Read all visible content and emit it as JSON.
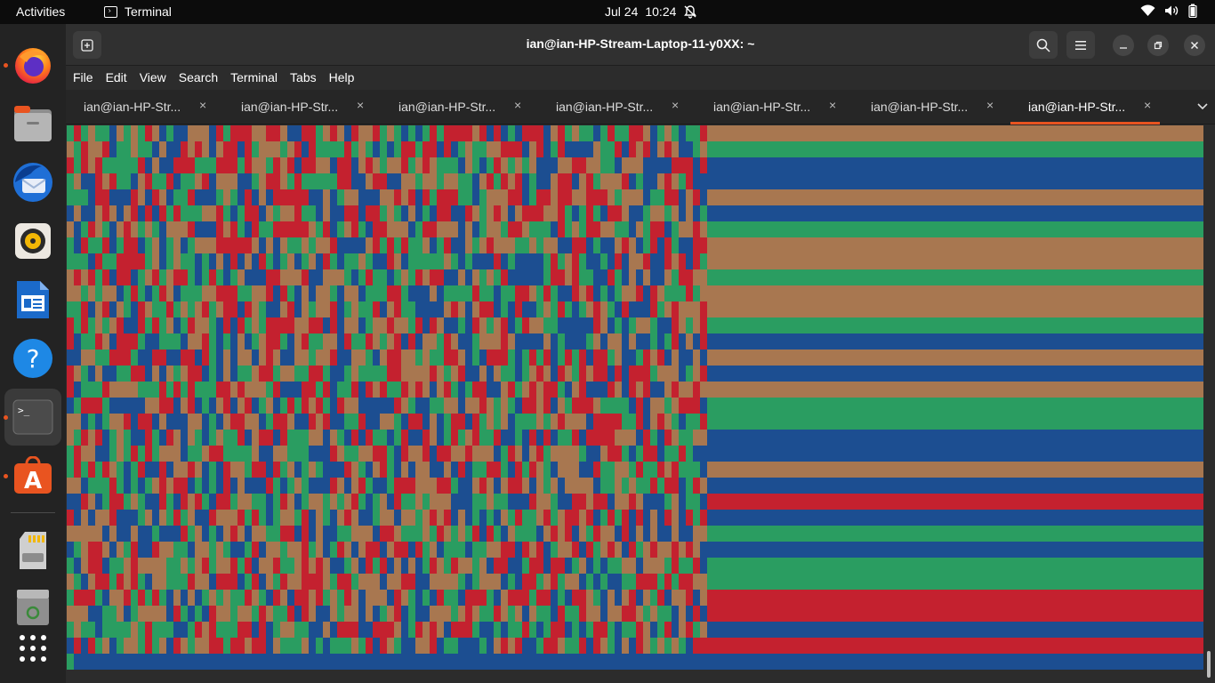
{
  "topbar": {
    "activities": "Activities",
    "app_name": "Terminal",
    "date": "Jul 24",
    "time": "10:24"
  },
  "dock": {
    "items": [
      {
        "name": "Firefox",
        "icon": "firefox-icon",
        "running": true
      },
      {
        "name": "Files",
        "icon": "files-icon",
        "running": false
      },
      {
        "name": "Thunderbird",
        "icon": "thunderbird-icon",
        "running": false
      },
      {
        "name": "Rhythmbox",
        "icon": "rhythmbox-icon",
        "running": false
      },
      {
        "name": "LibreOffice Writer",
        "icon": "writer-icon",
        "running": false
      },
      {
        "name": "Help",
        "icon": "help-icon",
        "running": false
      },
      {
        "name": "Terminal",
        "icon": "terminal-icon",
        "running": true,
        "active": true
      },
      {
        "name": "Ubuntu Software",
        "icon": "software-icon",
        "running": true
      },
      {
        "name": "SD Card",
        "icon": "sdcard-icon",
        "running": false
      },
      {
        "name": "Trash",
        "icon": "trash-icon",
        "running": false
      },
      {
        "name": "Show Applications",
        "icon": "app-grid-icon",
        "running": false
      }
    ]
  },
  "window": {
    "title": "ian@ian-HP-Stream-Laptop-11-y0XX: ~",
    "menu": [
      "File",
      "Edit",
      "View",
      "Search",
      "Terminal",
      "Tabs",
      "Help"
    ],
    "tabs": [
      {
        "label": "ian@ian-HP-Str...",
        "active": false
      },
      {
        "label": "ian@ian-HP-Str...",
        "active": false
      },
      {
        "label": "ian@ian-HP-Str...",
        "active": false
      },
      {
        "label": "ian@ian-HP-Str...",
        "active": false
      },
      {
        "label": "ian@ian-HP-Str...",
        "active": false
      },
      {
        "label": "ian@ian-HP-Str...",
        "active": false
      },
      {
        "label": "ian@ian-HP-Str...",
        "active": true
      }
    ],
    "tab_close_glyph": "×"
  },
  "colors": {
    "accent": "#e95420",
    "cell_palette": [
      "#1c4e91",
      "#c4212f",
      "#2a9d61",
      "#a87750"
    ]
  },
  "terminal": {
    "noise_rows": 33,
    "noise_cols": 90,
    "band_rows": [
      3,
      2,
      0,
      0,
      3,
      0,
      2,
      3,
      3,
      2,
      3,
      3,
      2,
      0,
      3,
      0,
      3,
      2,
      2,
      0,
      0,
      3,
      0,
      1,
      0,
      2,
      0,
      2,
      2,
      1,
      1,
      0,
      1
    ],
    "last_line": [
      2,
      0,
      0
    ]
  }
}
